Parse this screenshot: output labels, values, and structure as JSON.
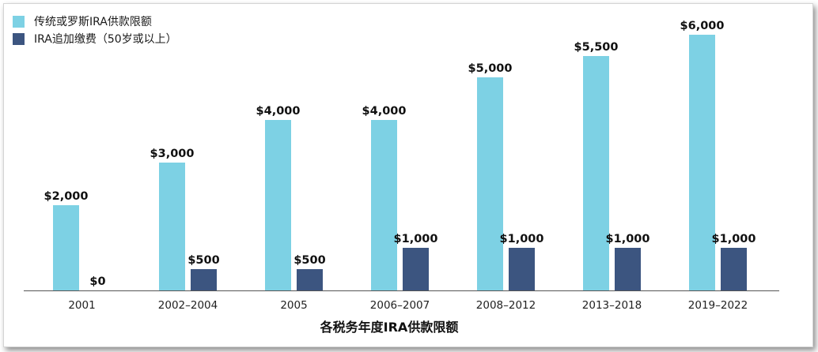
{
  "chart_data": {
    "type": "bar",
    "title": "",
    "xlabel": "各税务年度IRA供款限额",
    "ylabel": "",
    "ylim": [
      0,
      6000
    ],
    "legend_position": "top-left",
    "grid": false,
    "categories": [
      "2001",
      "2002–2004",
      "2005",
      "2006–2007",
      "2008–2012",
      "2013–2018",
      "2019–2022"
    ],
    "series": [
      {
        "name": "传统或罗斯IRA供款限额",
        "color": "#7dd1e4",
        "values": [
          2000,
          3000,
          4000,
          4000,
          5000,
          5500,
          6000
        ],
        "labels": [
          "$2,000",
          "$3,000",
          "$4,000",
          "$4,000",
          "$5,000",
          "$5,500",
          "$6,000"
        ]
      },
      {
        "name": "IRA追加缴费（50岁或以上）",
        "color": "#3c5580",
        "values": [
          0,
          500,
          500,
          1000,
          1000,
          1000,
          1000
        ],
        "labels": [
          "$0",
          "$500",
          "$500",
          "$1,000",
          "$1,000",
          "$1,000",
          "$1,000"
        ]
      }
    ]
  }
}
